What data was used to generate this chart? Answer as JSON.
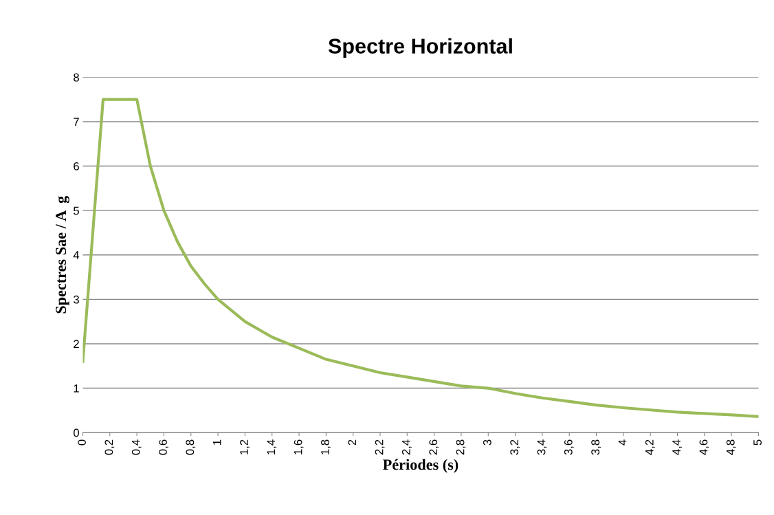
{
  "chart_data": {
    "type": "line",
    "title": "Spectre Horizontal",
    "xlabel": "Périodes (s)",
    "ylabel": "Spectres Sae / A  g",
    "series": [
      {
        "color": "#9bbb59",
        "x": [
          0,
          0.15,
          0.4,
          0.5,
          0.6,
          0.7,
          0.8,
          0.9,
          1,
          1.2,
          1.4,
          1.6,
          1.8,
          2,
          2.2,
          2.4,
          2.6,
          2.8,
          3,
          3.2,
          3.4,
          3.6,
          3.8,
          4,
          4.2,
          4.4,
          4.6,
          4.8,
          5
        ],
        "values": [
          1.6,
          7.5,
          7.5,
          6.0,
          5.0,
          4.3,
          3.75,
          3.35,
          3.0,
          2.5,
          2.15,
          1.9,
          1.65,
          1.5,
          1.35,
          1.25,
          1.15,
          1.05,
          1.0,
          0.88,
          0.78,
          0.7,
          0.62,
          0.56,
          0.51,
          0.46,
          0.43,
          0.4,
          0.36
        ]
      }
    ],
    "xlim": [
      0,
      5
    ],
    "xticks": [
      0,
      {
        "value": 0.2,
        "label": "0,2"
      },
      {
        "value": 0.4,
        "label": "0,4"
      },
      {
        "value": 0.6,
        "label": "0,6"
      },
      {
        "value": 0.8,
        "label": "0,8"
      },
      1,
      {
        "value": 1.2,
        "label": "1,2"
      },
      {
        "value": 1.4,
        "label": "1,4"
      },
      {
        "value": 1.6,
        "label": "1,6"
      },
      {
        "value": 1.8,
        "label": "1,8"
      },
      2,
      {
        "value": 2.2,
        "label": "2,2"
      },
      {
        "value": 2.4,
        "label": "2,4"
      },
      {
        "value": 2.6,
        "label": "2,6"
      },
      {
        "value": 2.8,
        "label": "2,8"
      },
      3,
      {
        "value": 3.2,
        "label": "3,2"
      },
      {
        "value": 3.4,
        "label": "3,4"
      },
      {
        "value": 3.6,
        "label": "3,6"
      },
      {
        "value": 3.8,
        "label": "3,8"
      },
      4,
      {
        "value": 4.2,
        "label": "4,2"
      },
      {
        "value": 4.4,
        "label": "4,4"
      },
      {
        "value": 4.6,
        "label": "4,6"
      },
      {
        "value": 4.8,
        "label": "4,8"
      },
      5
    ],
    "ylim": [
      0,
      8
    ],
    "yticks": [
      0,
      1,
      2,
      3,
      4,
      5,
      6,
      7,
      8
    ],
    "grid": "y",
    "legend": false,
    "marker": "none",
    "line_style": "solid"
  }
}
